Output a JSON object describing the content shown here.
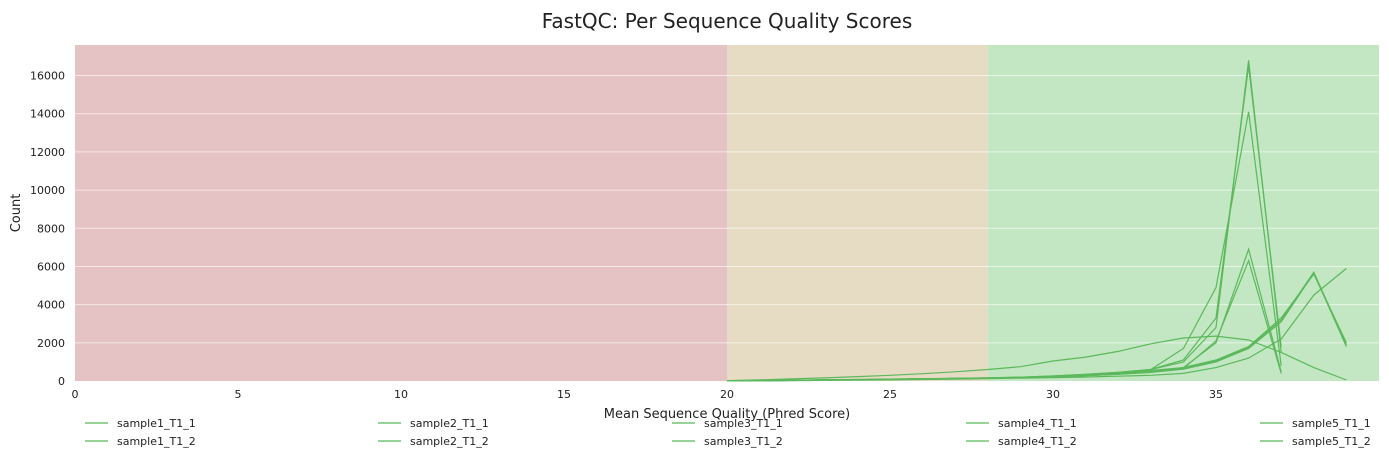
{
  "chart_data": {
    "type": "line",
    "title": "FastQC: Per Sequence Quality Scores",
    "xlabel": "Mean Sequence Quality (Phred Score)",
    "ylabel": "Count",
    "xlim": [
      0,
      40
    ],
    "ylim": [
      0,
      17600
    ],
    "x_ticks": [
      0,
      5,
      10,
      15,
      20,
      25,
      30,
      35
    ],
    "y_ticks": [
      0,
      2000,
      4000,
      6000,
      8000,
      10000,
      12000,
      14000,
      16000
    ],
    "grid": true,
    "legend_position": "bottom",
    "zones": [
      {
        "from": 0,
        "to": 20,
        "color": "#e5c3c4"
      },
      {
        "from": 20,
        "to": 28,
        "color": "#e6dcc4"
      },
      {
        "from": 28,
        "to": 40,
        "color": "#c3e7c3"
      }
    ],
    "line_color": "#5cb85c",
    "series": [
      {
        "name": "sample1_T1_1",
        "points": [
          [
            20,
            5
          ],
          [
            21,
            20
          ],
          [
            22,
            40
          ],
          [
            23,
            60
          ],
          [
            24,
            80
          ],
          [
            25,
            100
          ],
          [
            26,
            120
          ],
          [
            27,
            140
          ],
          [
            28,
            160
          ],
          [
            29,
            200
          ],
          [
            30,
            260
          ],
          [
            31,
            350
          ],
          [
            32,
            450
          ],
          [
            33,
            600
          ],
          [
            34,
            1100
          ],
          [
            35,
            3300
          ],
          [
            36,
            16500
          ],
          [
            37,
            1800
          ]
        ]
      },
      {
        "name": "sample1_T1_2",
        "points": [
          [
            20,
            5
          ],
          [
            21,
            20
          ],
          [
            22,
            40
          ],
          [
            23,
            60
          ],
          [
            24,
            80
          ],
          [
            25,
            100
          ],
          [
            26,
            120
          ],
          [
            27,
            140
          ],
          [
            28,
            160
          ],
          [
            29,
            200
          ],
          [
            30,
            260
          ],
          [
            31,
            350
          ],
          [
            32,
            450
          ],
          [
            33,
            600
          ],
          [
            34,
            1000
          ],
          [
            35,
            2800
          ],
          [
            36,
            16800
          ],
          [
            37,
            1500
          ]
        ]
      },
      {
        "name": "sample2_T1_1",
        "points": [
          [
            20,
            5
          ],
          [
            21,
            15
          ],
          [
            22,
            30
          ],
          [
            23,
            50
          ],
          [
            24,
            70
          ],
          [
            25,
            90
          ],
          [
            26,
            110
          ],
          [
            27,
            130
          ],
          [
            28,
            150
          ],
          [
            29,
            190
          ],
          [
            30,
            250
          ],
          [
            31,
            330
          ],
          [
            32,
            430
          ],
          [
            33,
            600
          ],
          [
            34,
            1700
          ],
          [
            35,
            4900
          ],
          [
            36,
            14100
          ],
          [
            37,
            800
          ]
        ]
      },
      {
        "name": "sample2_T1_2",
        "points": [
          [
            20,
            5
          ],
          [
            21,
            15
          ],
          [
            22,
            30
          ],
          [
            23,
            50
          ],
          [
            24,
            70
          ],
          [
            25,
            90
          ],
          [
            26,
            110
          ],
          [
            27,
            130
          ],
          [
            28,
            150
          ],
          [
            29,
            190
          ],
          [
            30,
            240
          ],
          [
            31,
            320
          ],
          [
            32,
            410
          ],
          [
            33,
            550
          ],
          [
            34,
            700
          ],
          [
            35,
            2000
          ],
          [
            36,
            6900
          ],
          [
            37,
            500
          ]
        ]
      },
      {
        "name": "sample3_T1_1",
        "points": [
          [
            20,
            5
          ],
          [
            21,
            15
          ],
          [
            22,
            30
          ],
          [
            23,
            50
          ],
          [
            24,
            70
          ],
          [
            25,
            90
          ],
          [
            26,
            110
          ],
          [
            27,
            130
          ],
          [
            28,
            150
          ],
          [
            29,
            180
          ],
          [
            30,
            230
          ],
          [
            31,
            300
          ],
          [
            32,
            380
          ],
          [
            33,
            500
          ],
          [
            34,
            650
          ],
          [
            35,
            2100
          ],
          [
            36,
            6300
          ],
          [
            37,
            400
          ]
        ]
      },
      {
        "name": "sample3_T1_2",
        "points": [
          [
            20,
            5
          ],
          [
            21,
            15
          ],
          [
            22,
            30
          ],
          [
            23,
            50
          ],
          [
            24,
            70
          ],
          [
            25,
            90
          ],
          [
            26,
            110
          ],
          [
            27,
            130
          ],
          [
            28,
            150
          ],
          [
            29,
            180
          ],
          [
            30,
            220
          ],
          [
            31,
            290
          ],
          [
            32,
            360
          ],
          [
            33,
            470
          ],
          [
            34,
            700
          ],
          [
            35,
            1100
          ],
          [
            36,
            1800
          ],
          [
            37,
            3300
          ],
          [
            38,
            5600
          ],
          [
            39,
            2000
          ]
        ]
      },
      {
        "name": "sample4_T1_1",
        "points": [
          [
            20,
            5
          ],
          [
            21,
            15
          ],
          [
            22,
            30
          ],
          [
            23,
            50
          ],
          [
            24,
            70
          ],
          [
            25,
            90
          ],
          [
            26,
            110
          ],
          [
            27,
            130
          ],
          [
            28,
            150
          ],
          [
            29,
            180
          ],
          [
            30,
            220
          ],
          [
            31,
            290
          ],
          [
            32,
            360
          ],
          [
            33,
            470
          ],
          [
            34,
            650
          ],
          [
            35,
            1050
          ],
          [
            36,
            1750
          ],
          [
            37,
            3200
          ],
          [
            38,
            5700
          ],
          [
            39,
            1900
          ]
        ]
      },
      {
        "name": "sample4_T1_2",
        "points": [
          [
            20,
            5
          ],
          [
            21,
            15
          ],
          [
            22,
            30
          ],
          [
            23,
            50
          ],
          [
            24,
            70
          ],
          [
            25,
            90
          ],
          [
            26,
            110
          ],
          [
            27,
            130
          ],
          [
            28,
            150
          ],
          [
            29,
            180
          ],
          [
            30,
            210
          ],
          [
            31,
            280
          ],
          [
            32,
            350
          ],
          [
            33,
            450
          ],
          [
            34,
            620
          ],
          [
            35,
            1000
          ],
          [
            36,
            1700
          ],
          [
            37,
            3100
          ],
          [
            38,
            5650
          ],
          [
            39,
            1800
          ]
        ]
      },
      {
        "name": "sample5_T1_1",
        "points": [
          [
            20,
            20
          ],
          [
            21,
            60
          ],
          [
            22,
            110
          ],
          [
            23,
            160
          ],
          [
            24,
            230
          ],
          [
            25,
            300
          ],
          [
            26,
            380
          ],
          [
            27,
            480
          ],
          [
            28,
            600
          ],
          [
            29,
            750
          ],
          [
            30,
            1050
          ],
          [
            31,
            1250
          ],
          [
            32,
            1550
          ],
          [
            33,
            1950
          ],
          [
            34,
            2250
          ],
          [
            35,
            2350
          ],
          [
            36,
            2150
          ],
          [
            37,
            1500
          ],
          [
            38,
            700
          ],
          [
            39,
            50
          ]
        ]
      },
      {
        "name": "sample5_T1_2",
        "points": [
          [
            20,
            5
          ],
          [
            21,
            10
          ],
          [
            22,
            20
          ],
          [
            23,
            30
          ],
          [
            24,
            45
          ],
          [
            25,
            60
          ],
          [
            26,
            80
          ],
          [
            27,
            100
          ],
          [
            28,
            120
          ],
          [
            29,
            150
          ],
          [
            30,
            180
          ],
          [
            31,
            210
          ],
          [
            32,
            250
          ],
          [
            33,
            300
          ],
          [
            34,
            400
          ],
          [
            35,
            700
          ],
          [
            36,
            1200
          ],
          [
            37,
            2200
          ],
          [
            38,
            4500
          ],
          [
            39,
            5900
          ]
        ]
      }
    ]
  }
}
